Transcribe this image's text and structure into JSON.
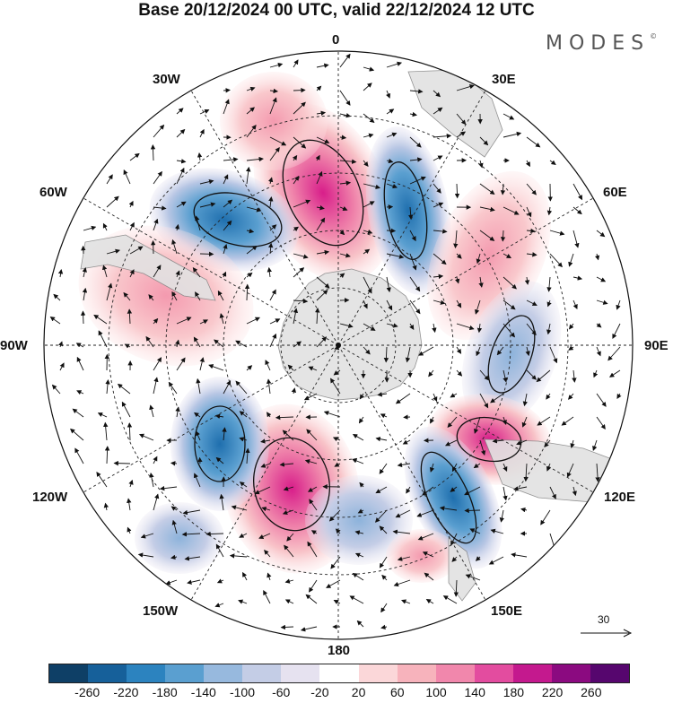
{
  "title": "Base 20/12/2024 00 UTC, valid 22/12/2024 12 UTC",
  "brand": "MODES",
  "brand_mark": "©",
  "longitude_labels": [
    "0",
    "30E",
    "60E",
    "90E",
    "120E",
    "150E",
    "180",
    "150W",
    "120W",
    "90W",
    "60W",
    "30W"
  ],
  "reference_vector": {
    "value": "30",
    "icon": "arrow-right-icon"
  },
  "colorbar": {
    "ticks": [
      "-260",
      "-220",
      "-180",
      "-140",
      "-100",
      "-60",
      "-20",
      "20",
      "60",
      "100",
      "140",
      "180",
      "220",
      "260"
    ],
    "colors": [
      "#0e3f66",
      "#16609a",
      "#2c83bf",
      "#5a9fd0",
      "#97b9de",
      "#c4cde6",
      "#e6e2f0",
      "#ffffff",
      "#fbd7d9",
      "#f7b3bc",
      "#f187ac",
      "#e34c9f",
      "#c4198e",
      "#8b0a80",
      "#56066e"
    ]
  }
}
